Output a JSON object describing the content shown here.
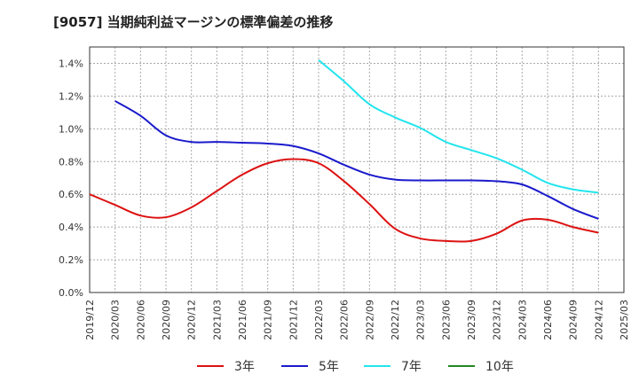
{
  "chart_data": {
    "type": "line",
    "title": "[9057]  当期純利益マージンの標準偏差の推移",
    "xlabel": "",
    "ylabel": "",
    "ylim": [
      0,
      1.5
    ],
    "yticks": [
      "0.0%",
      "0.2%",
      "0.4%",
      "0.6%",
      "0.8%",
      "1.0%",
      "1.2%",
      "1.4%"
    ],
    "ytick_values": [
      0,
      0.2,
      0.4,
      0.6,
      0.8,
      1.0,
      1.2,
      1.4
    ],
    "xticks": [
      "2019/12",
      "2020/03",
      "2020/06",
      "2020/09",
      "2020/12",
      "2021/03",
      "2021/06",
      "2021/09",
      "2021/12",
      "2022/03",
      "2022/06",
      "2022/09",
      "2022/12",
      "2023/03",
      "2023/06",
      "2023/09",
      "2023/12",
      "2024/03",
      "2024/06",
      "2024/09",
      "2024/12",
      "2025/03"
    ],
    "grid": true,
    "legend_position": "bottom",
    "series": [
      {
        "name": "3年",
        "color": "#dd1111",
        "points": [
          [
            "2019/12",
            0.6
          ],
          [
            "2020/03",
            0.535
          ],
          [
            "2020/06",
            0.47
          ],
          [
            "2020/09",
            0.46
          ],
          [
            "2020/12",
            0.52
          ],
          [
            "2021/03",
            0.62
          ],
          [
            "2021/06",
            0.72
          ],
          [
            "2021/09",
            0.79
          ],
          [
            "2021/12",
            0.815
          ],
          [
            "2022/03",
            0.79
          ],
          [
            "2022/06",
            0.68
          ],
          [
            "2022/09",
            0.54
          ],
          [
            "2022/12",
            0.39
          ],
          [
            "2023/03",
            0.33
          ],
          [
            "2023/06",
            0.315
          ],
          [
            "2023/09",
            0.315
          ],
          [
            "2023/12",
            0.36
          ],
          [
            "2024/03",
            0.44
          ],
          [
            "2024/06",
            0.445
          ],
          [
            "2024/09",
            0.4
          ],
          [
            "2024/12",
            0.365
          ]
        ]
      },
      {
        "name": "5年",
        "color": "#1a1acc",
        "points": [
          [
            "2020/03",
            1.17
          ],
          [
            "2020/06",
            1.08
          ],
          [
            "2020/09",
            0.96
          ],
          [
            "2020/12",
            0.92
          ],
          [
            "2021/03",
            0.92
          ],
          [
            "2021/06",
            0.915
          ],
          [
            "2021/09",
            0.91
          ],
          [
            "2021/12",
            0.895
          ],
          [
            "2022/03",
            0.85
          ],
          [
            "2022/06",
            0.78
          ],
          [
            "2022/09",
            0.72
          ],
          [
            "2022/12",
            0.69
          ],
          [
            "2023/03",
            0.685
          ],
          [
            "2023/06",
            0.685
          ],
          [
            "2023/09",
            0.685
          ],
          [
            "2023/12",
            0.68
          ],
          [
            "2024/03",
            0.66
          ],
          [
            "2024/06",
            0.59
          ],
          [
            "2024/09",
            0.51
          ],
          [
            "2024/12",
            0.45
          ]
        ]
      },
      {
        "name": "7年",
        "color": "#22e5ee",
        "points": [
          [
            "2022/03",
            1.42
          ],
          [
            "2022/06",
            1.29
          ],
          [
            "2022/09",
            1.15
          ],
          [
            "2022/12",
            1.07
          ],
          [
            "2023/03",
            1.005
          ],
          [
            "2023/06",
            0.92
          ],
          [
            "2023/09",
            0.87
          ],
          [
            "2023/12",
            0.82
          ],
          [
            "2024/03",
            0.75
          ],
          [
            "2024/06",
            0.67
          ],
          [
            "2024/09",
            0.63
          ],
          [
            "2024/12",
            0.61
          ]
        ]
      },
      {
        "name": "10年",
        "color": "#228822",
        "points": []
      }
    ]
  }
}
